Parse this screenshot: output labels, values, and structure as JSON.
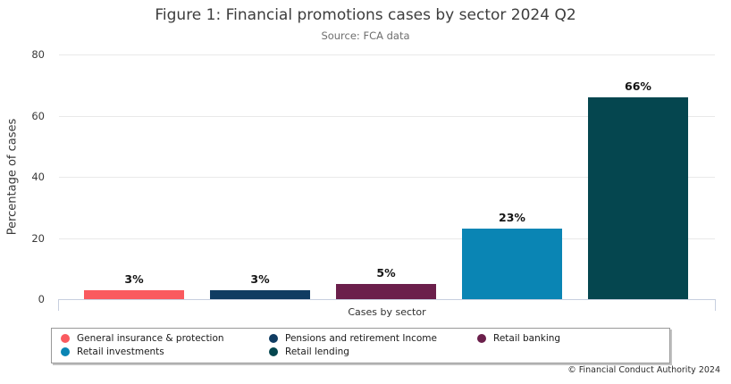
{
  "chart_data": {
    "type": "bar",
    "title": "Figure 1: Financial promotions cases by sector 2024 Q2",
    "subtitle": "Source: FCA data",
    "xlabel": "Cases by sector",
    "ylabel": "Percentage of cases",
    "ylim": [
      0,
      80
    ],
    "yticks": [
      0,
      20,
      40,
      60,
      80
    ],
    "grid": true,
    "legend_position": "bottom",
    "categories": [
      "General insurance & protection",
      "Pensions and retirement Income",
      "Retail banking",
      "Retail investments",
      "Retail lending"
    ],
    "values": [
      3,
      3,
      5,
      23,
      66
    ],
    "value_labels": [
      "3%",
      "3%",
      "5%",
      "23%",
      "66%"
    ],
    "colors": [
      "#fa5a5f",
      "#103c62",
      "#6b1f4b",
      "#0a85b4",
      "#05464f"
    ]
  },
  "footer": {
    "text": "© Financial Conduct Authority 2024"
  }
}
